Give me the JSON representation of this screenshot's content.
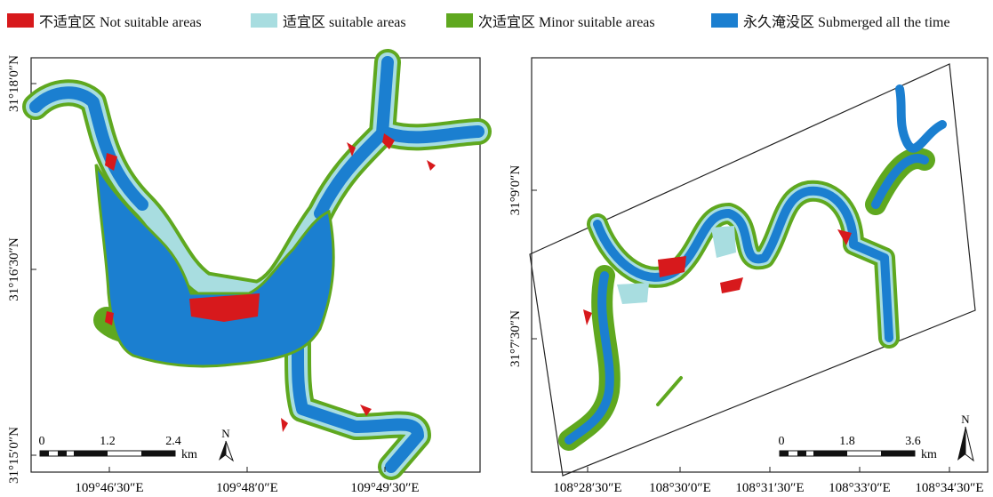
{
  "legend": [
    {
      "key": "not_suitable",
      "label": "不适宜区 Not suitable areas",
      "color": "#d7191c"
    },
    {
      "key": "suitable",
      "label": "适宜区 suitable areas",
      "color": "#a8dde0"
    },
    {
      "key": "minor",
      "label": "次适宜区 Minor suitable areas",
      "color": "#5fa81f"
    },
    {
      "key": "submerged",
      "label": "永久淹没区 Submerged all the time",
      "color": "#1b7fd0"
    }
  ],
  "map_left": {
    "lat_ticks": [
      "31°18′0″N",
      "31°16′30″N",
      "31°15′0″N"
    ],
    "lon_ticks": [
      "109°46′30″E",
      "109°48′0″E",
      "109°49′30″E"
    ],
    "scale": {
      "labels": [
        "0",
        "1.2",
        "2.4"
      ],
      "unit": "km"
    },
    "north": "N"
  },
  "map_right": {
    "lat_ticks": [
      "31°9′0″N",
      "31°7′30″N"
    ],
    "lon_ticks": [
      "108°28′30″E",
      "108°30′0″E",
      "108°31′30″E",
      "108°33′0″E",
      "108°34′30″E"
    ],
    "scale": {
      "labels": [
        "0",
        "1.8",
        "3.6"
      ],
      "unit": "km"
    },
    "north": "N"
  }
}
